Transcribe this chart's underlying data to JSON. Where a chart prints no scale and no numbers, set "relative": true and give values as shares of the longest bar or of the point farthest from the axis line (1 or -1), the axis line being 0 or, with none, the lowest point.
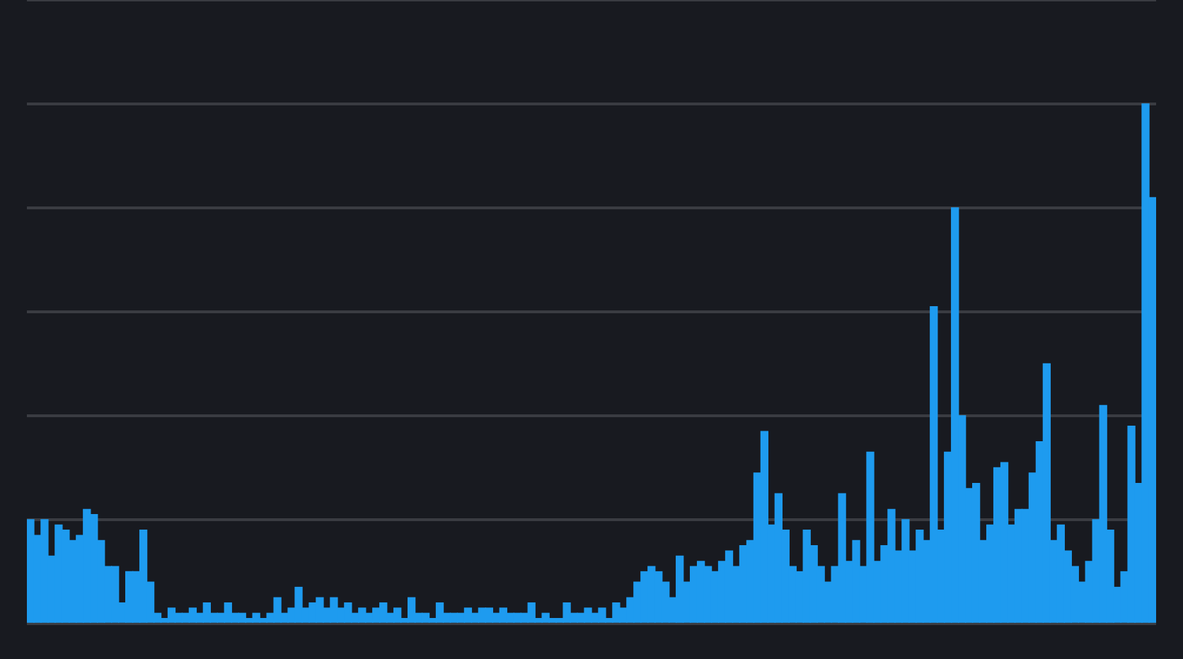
{
  "chart_data": {
    "type": "bar",
    "relative": true,
    "color": "#1e9bef",
    "grid": "y",
    "legend": false,
    "tick_labels": false,
    "categories": [
      null,
      null,
      null,
      null,
      null,
      null,
      null,
      null,
      null,
      null,
      null,
      null,
      null,
      null,
      null,
      null,
      null,
      null,
      null,
      null,
      null,
      null,
      null,
      null,
      null,
      null,
      null,
      null,
      null,
      null,
      null,
      null,
      null,
      null,
      null,
      null,
      null,
      null,
      null,
      null,
      null,
      null,
      null,
      null,
      null,
      null,
      null,
      null,
      null,
      null,
      null,
      null,
      null,
      null,
      null,
      null,
      null,
      null,
      null,
      null,
      null,
      null,
      null,
      null,
      null,
      null,
      null,
      null,
      null,
      null,
      null,
      null,
      null,
      null,
      null,
      null,
      null,
      null,
      null,
      null,
      null,
      null,
      null,
      null,
      null,
      null,
      null,
      null,
      null,
      null,
      null,
      null,
      null,
      null,
      null,
      null,
      null,
      null,
      null,
      null,
      null,
      null,
      null,
      null,
      null,
      null,
      null,
      null,
      null,
      null,
      null,
      null,
      null,
      null,
      null,
      null,
      null,
      null,
      null,
      null,
      null,
      null,
      null,
      null,
      null,
      null,
      null,
      null,
      null,
      null,
      null,
      null,
      null,
      null,
      null,
      null,
      null,
      null,
      null,
      null,
      null,
      null,
      null,
      null,
      null,
      null,
      null,
      null,
      null,
      null,
      null,
      null,
      null,
      null,
      null,
      null,
      null,
      null,
      null,
      null
    ],
    "values": [
      0.2,
      0.17,
      0.2,
      0.13,
      0.19,
      0.18,
      0.16,
      0.17,
      0.22,
      0.21,
      0.16,
      0.11,
      0.11,
      0.04,
      0.1,
      0.1,
      0.18,
      0.08,
      0.02,
      0.01,
      0.03,
      0.02,
      0.02,
      0.03,
      0.02,
      0.04,
      0.02,
      0.02,
      0.04,
      0.02,
      0.02,
      0.01,
      0.02,
      0.01,
      0.02,
      0.05,
      0.02,
      0.03,
      0.07,
      0.03,
      0.04,
      0.05,
      0.03,
      0.05,
      0.03,
      0.04,
      0.02,
      0.03,
      0.02,
      0.03,
      0.04,
      0.02,
      0.03,
      0.01,
      0.05,
      0.02,
      0.02,
      0.01,
      0.04,
      0.02,
      0.02,
      0.02,
      0.03,
      0.02,
      0.03,
      0.03,
      0.02,
      0.03,
      0.02,
      0.02,
      0.02,
      0.04,
      0.01,
      0.02,
      0.01,
      0.01,
      0.04,
      0.02,
      0.02,
      0.03,
      0.02,
      0.03,
      0.01,
      0.04,
      0.03,
      0.05,
      0.08,
      0.1,
      0.11,
      0.1,
      0.08,
      0.05,
      0.13,
      0.08,
      0.11,
      0.12,
      0.11,
      0.1,
      0.12,
      0.14,
      0.11,
      0.15,
      0.16,
      0.29,
      0.37,
      0.19,
      0.25,
      0.18,
      0.11,
      0.1,
      0.18,
      0.15,
      0.11,
      0.08,
      0.11,
      0.25,
      0.12,
      0.16,
      0.11,
      0.33,
      0.12,
      0.15,
      0.22,
      0.14,
      0.2,
      0.14,
      0.18,
      0.16,
      0.61,
      0.18,
      0.33,
      0.8,
      0.4,
      0.26,
      0.27,
      0.16,
      0.19,
      0.3,
      0.31,
      0.19,
      0.22,
      0.22,
      0.29,
      0.35,
      0.5,
      0.16,
      0.19,
      0.14,
      0.11,
      0.08,
      0.12,
      0.2,
      0.42,
      0.18,
      0.07,
      0.1,
      0.38,
      0.27,
      1,
      0.82
    ]
  }
}
